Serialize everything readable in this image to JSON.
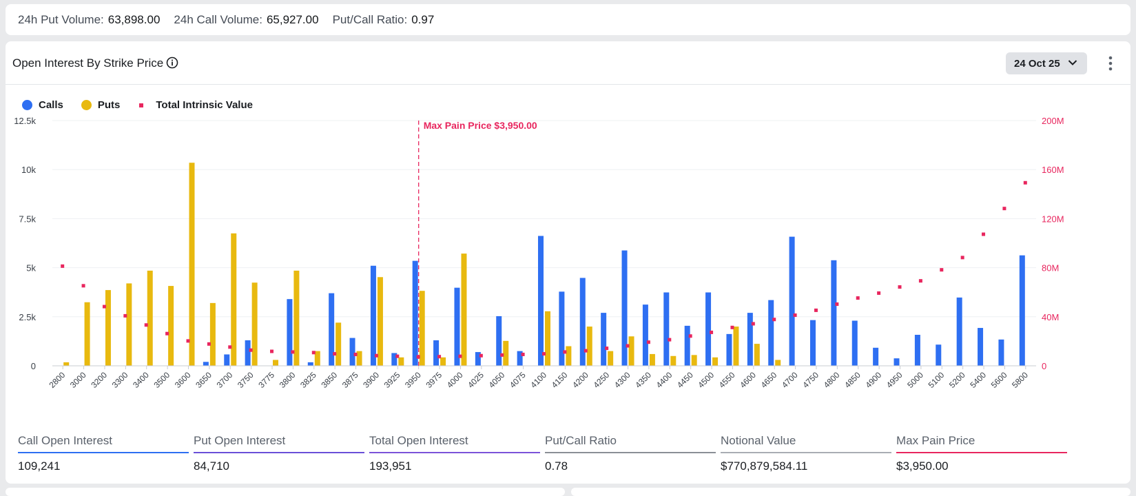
{
  "stats": {
    "put_volume_label": "24h Put Volume:",
    "put_volume_value": "63,898.00",
    "call_volume_label": "24h Call Volume:",
    "call_volume_value": "65,927.00",
    "ratio_label": "Put/Call Ratio:",
    "ratio_value": "0.97"
  },
  "card": {
    "title": "Open Interest By Strike Price",
    "info_icon": "info-circle-icon",
    "date_selector": "24 Oct 25",
    "menu_icon": "kebab-vertical-icon"
  },
  "colors": {
    "calls": "#2e6ff2",
    "puts": "#e8b90f",
    "intrinsic": "#e8265e",
    "max_pain": "#e8265e"
  },
  "chart_data": {
    "type": "bar",
    "legend": [
      "Calls",
      "Puts",
      "Total Intrinsic Value"
    ],
    "legend_position": "top-left",
    "categories": [
      "2800",
      "3000",
      "3200",
      "3300",
      "3400",
      "3500",
      "3600",
      "3650",
      "3700",
      "3750",
      "3775",
      "3800",
      "3825",
      "3850",
      "3875",
      "3900",
      "3925",
      "3950",
      "3975",
      "4000",
      "4025",
      "4050",
      "4075",
      "4100",
      "4150",
      "4200",
      "4250",
      "4300",
      "4350",
      "4400",
      "4450",
      "4500",
      "4550",
      "4600",
      "4650",
      "4700",
      "4750",
      "4800",
      "4850",
      "4900",
      "4950",
      "5000",
      "5100",
      "5200",
      "5400",
      "5600",
      "5800"
    ],
    "series": [
      {
        "name": "Calls",
        "axis": "left",
        "values": [
          0,
          0,
          0,
          0,
          0,
          0,
          0,
          200,
          580,
          1300,
          0,
          3400,
          180,
          3700,
          1420,
          5100,
          650,
          5350,
          1300,
          3980,
          700,
          2530,
          750,
          6620,
          3780,
          4480,
          2700,
          5880,
          3120,
          3740,
          2040,
          3740,
          1620,
          2700,
          3350,
          6580,
          2330,
          5380,
          2300,
          920,
          380,
          1580,
          1080,
          3480,
          1930,
          1340,
          5630
        ]
      },
      {
        "name": "Puts",
        "axis": "left",
        "values": [
          180,
          3240,
          3860,
          4200,
          4850,
          4070,
          10350,
          3200,
          6750,
          4240,
          300,
          4850,
          750,
          2200,
          750,
          4520,
          430,
          3820,
          430,
          5720,
          0,
          1270,
          0,
          2780,
          1000,
          2000,
          750,
          1500,
          600,
          500,
          550,
          430,
          2000,
          1120,
          300,
          0,
          0,
          0,
          0,
          0,
          0,
          0,
          0,
          0,
          0,
          0,
          0
        ]
      },
      {
        "name": "Total Intrinsic Value",
        "axis": "right",
        "type": "scatter",
        "values": [
          81000000,
          65000000,
          48000000,
          40500000,
          33000000,
          26000000,
          20000000,
          17500000,
          15000000,
          12500000,
          11500000,
          11000000,
          10500000,
          9500000,
          9000000,
          8000000,
          7500000,
          7000000,
          7200000,
          7500000,
          8000000,
          8500000,
          9000000,
          9500000,
          11000000,
          12000000,
          14000000,
          16000000,
          19000000,
          21000000,
          24000000,
          27000000,
          31000000,
          34000000,
          37500000,
          41000000,
          45000000,
          50000000,
          55000000,
          59000000,
          64000000,
          69000000,
          78000000,
          88000000,
          107000000,
          128000000,
          149000000
        ]
      }
    ],
    "y_left": {
      "min": 0,
      "max": 12500,
      "ticks": [
        0,
        2500,
        5000,
        7500,
        10000,
        12500
      ],
      "tick_labels": [
        "0",
        "2.5k",
        "5k",
        "7.5k",
        "10k",
        "12.5k"
      ]
    },
    "y_right": {
      "min": 0,
      "max": 200000000,
      "ticks": [
        0,
        40000000,
        80000000,
        120000000,
        160000000,
        200000000
      ],
      "tick_labels": [
        "0",
        "40M",
        "80M",
        "120M",
        "160M",
        "200M"
      ]
    },
    "grid": true,
    "max_pain": {
      "strike": "3950",
      "label": "Max Pain Price $3,950.00"
    }
  },
  "metrics": [
    {
      "label": "Call Open Interest",
      "value": "109,241",
      "color": "#2e6ff2"
    },
    {
      "label": "Put Open Interest",
      "value": "84,710",
      "color": "#6a4fd8"
    },
    {
      "label": "Total Open Interest",
      "value": "193,951",
      "color": "#7b52d9"
    },
    {
      "label": "Put/Call Ratio",
      "value": "0.78",
      "color": "#8a8f96"
    },
    {
      "label": "Notional Value",
      "value": "$770,879,584.11",
      "color": "#a9adb3"
    },
    {
      "label": "Max Pain Price",
      "value": "$3,950.00",
      "color": "#e8265e"
    }
  ]
}
